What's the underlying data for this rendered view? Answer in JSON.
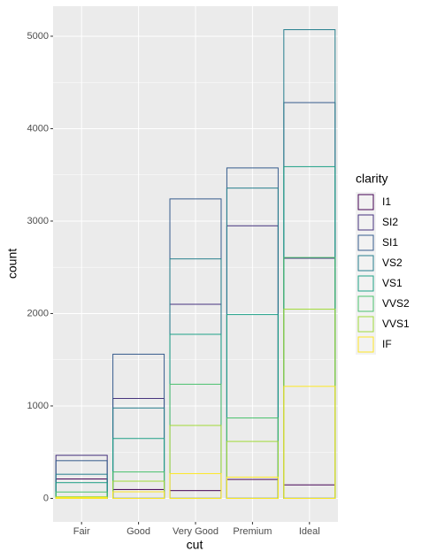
{
  "chart_data": {
    "type": "bar",
    "x_label": "cut",
    "y_label": "count",
    "legend_title": "clarity",
    "categories": [
      "Fair",
      "Good",
      "Very Good",
      "Premium",
      "Ideal"
    ],
    "series": [
      {
        "name": "I1",
        "color": "#440154",
        "values": [
          210,
          96,
          84,
          205,
          146
        ]
      },
      {
        "name": "SI2",
        "color": "#46337E",
        "values": [
          466,
          1081,
          2100,
          2949,
          2598
        ]
      },
      {
        "name": "SI1",
        "color": "#365C8D",
        "values": [
          408,
          1560,
          3240,
          3575,
          4282
        ]
      },
      {
        "name": "VS2",
        "color": "#277F8E",
        "values": [
          261,
          978,
          2591,
          3357,
          5071
        ]
      },
      {
        "name": "VS1",
        "color": "#1FA187",
        "values": [
          170,
          648,
          1775,
          1989,
          3589
        ]
      },
      {
        "name": "VVS2",
        "color": "#4AC16D",
        "values": [
          69,
          286,
          1235,
          870,
          2606
        ]
      },
      {
        "name": "VVS1",
        "color": "#A0DA39",
        "values": [
          17,
          186,
          789,
          616,
          2047
        ]
      },
      {
        "name": "IF",
        "color": "#FDE725",
        "values": [
          9,
          71,
          268,
          230,
          1212
        ]
      }
    ],
    "ylim": [
      -254,
      5325
    ],
    "yticks": [
      0,
      1000,
      2000,
      3000,
      4000,
      5000
    ],
    "grid": true,
    "legend": "right"
  }
}
